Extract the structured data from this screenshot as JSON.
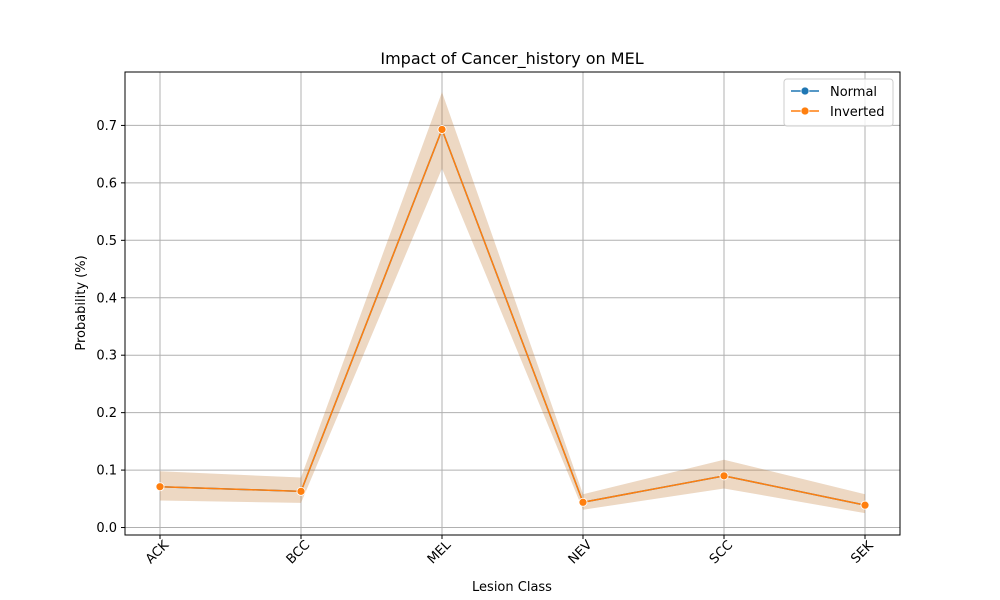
{
  "chart_data": {
    "type": "line",
    "title": "Impact of Cancer_history on MEL",
    "xlabel": "Lesion Class",
    "ylabel": "Probability (%)",
    "categories": [
      "ACK",
      "BCC",
      "MEL",
      "NEV",
      "SCC",
      "SEK"
    ],
    "ylim": [
      -0.013,
      0.793
    ],
    "yticks": [
      0.0,
      0.1,
      0.2,
      0.3,
      0.4,
      0.5,
      0.6,
      0.7
    ],
    "ytick_labels": [
      "0.0",
      "0.1",
      "0.2",
      "0.3",
      "0.4",
      "0.5",
      "0.6",
      "0.7"
    ],
    "grid": true,
    "legend_position": "top-right",
    "series": [
      {
        "name": "Normal",
        "color": "#1f77b4",
        "values": [
          0.071,
          0.063,
          0.693,
          0.044,
          0.09,
          0.039
        ],
        "ci_lower": [
          0.047,
          0.043,
          0.625,
          0.031,
          0.068,
          0.025
        ],
        "ci_upper": [
          0.098,
          0.087,
          0.758,
          0.058,
          0.118,
          0.058
        ]
      },
      {
        "name": "Inverted",
        "color": "#ff7f0e",
        "values": [
          0.071,
          0.063,
          0.693,
          0.044,
          0.09,
          0.039
        ],
        "ci_lower": [
          0.047,
          0.043,
          0.625,
          0.031,
          0.068,
          0.025
        ],
        "ci_upper": [
          0.098,
          0.087,
          0.758,
          0.058,
          0.118,
          0.058
        ]
      }
    ]
  }
}
